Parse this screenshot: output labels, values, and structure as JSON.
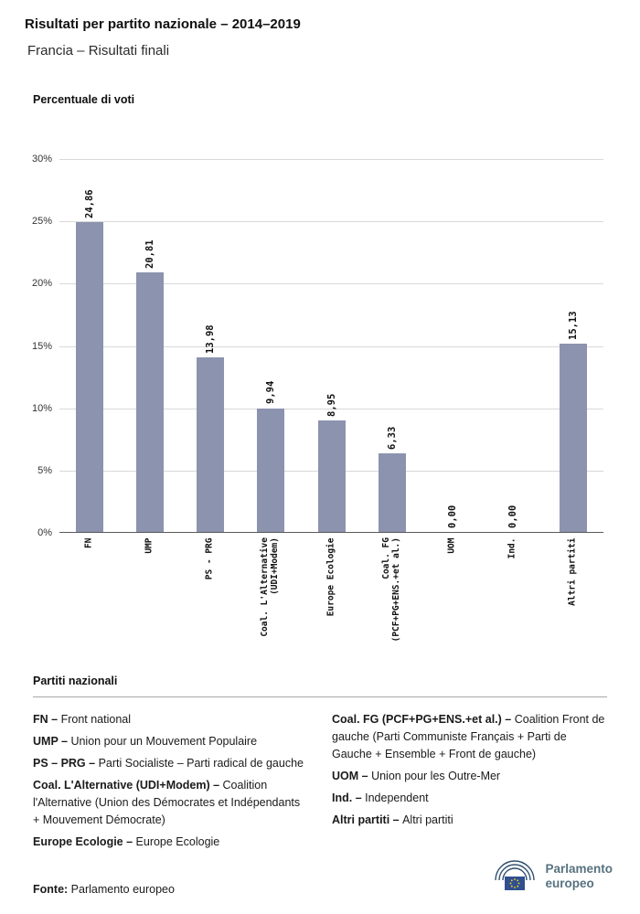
{
  "header": {
    "title": "Risultati per partito nazionale – 2014–2019",
    "subtitle": "Francia – Risultati finali"
  },
  "chart_data": {
    "type": "bar",
    "axis_title": "Percentuale di voti",
    "categories": [
      "FN",
      "UMP",
      "PS - PRG",
      "Coal. L'Alternative\n(UDI+Modem)",
      "Europe Ecologie",
      "Coal. FG\n(PCF+PG+ENS.+et al.)",
      "UOM",
      "Ind.",
      "Altri partiti"
    ],
    "values": [
      24.86,
      20.81,
      13.98,
      9.94,
      8.95,
      6.33,
      0,
      0,
      15.13
    ],
    "value_labels": [
      "24,86",
      "20,81",
      "13,98",
      "9,94",
      "8,95",
      "6,33",
      "0,00",
      "0,00",
      "15,13"
    ],
    "ylim": [
      0,
      30
    ],
    "yticks": [
      0,
      5,
      10,
      15,
      20,
      25,
      30
    ],
    "ytick_labels": [
      "0%",
      "5%",
      "10%",
      "15%",
      "20%",
      "25%",
      "30%"
    ],
    "grid": true,
    "legend_position": "bottom",
    "bar_color": "#8C93AE"
  },
  "legend": {
    "title": "Partiti nazionali",
    "columns": [
      [
        {
          "name": "FN –",
          "desc": "Front national"
        },
        {
          "name": "UMP –",
          "desc": "Union pour un Mouvement Populaire"
        },
        {
          "name": "PS – PRG –",
          "desc": "Parti Socialiste – Parti radical de gauche"
        },
        {
          "name": "Coal. L'Alternative (UDI+Modem) –",
          "desc": "Coalition l'Alternative (Union des Démocrates et Indépendants + Mouvement Démocrate)"
        },
        {
          "name": "Europe Ecologie –",
          "desc": "Europe Ecologie"
        }
      ],
      [
        {
          "name": "Coal. FG (PCF+PG+ENS.+et al.) –",
          "desc": "Coalition Front de gauche (Parti Communiste Français + Parti de Gauche + Ensemble + Front de gauche)"
        },
        {
          "name": "UOM –",
          "desc": "Union pour les Outre-Mer"
        },
        {
          "name": "Ind. –",
          "desc": "Independent"
        },
        {
          "name": "Altri partiti –",
          "desc": "Altri partiti"
        }
      ]
    ]
  },
  "footer": {
    "source_label": "Fonte:",
    "source_text": "Parlamento europeo",
    "logo_line1": "Parlamento",
    "logo_line2": "europeo",
    "logo_text_color": "#56727f"
  }
}
